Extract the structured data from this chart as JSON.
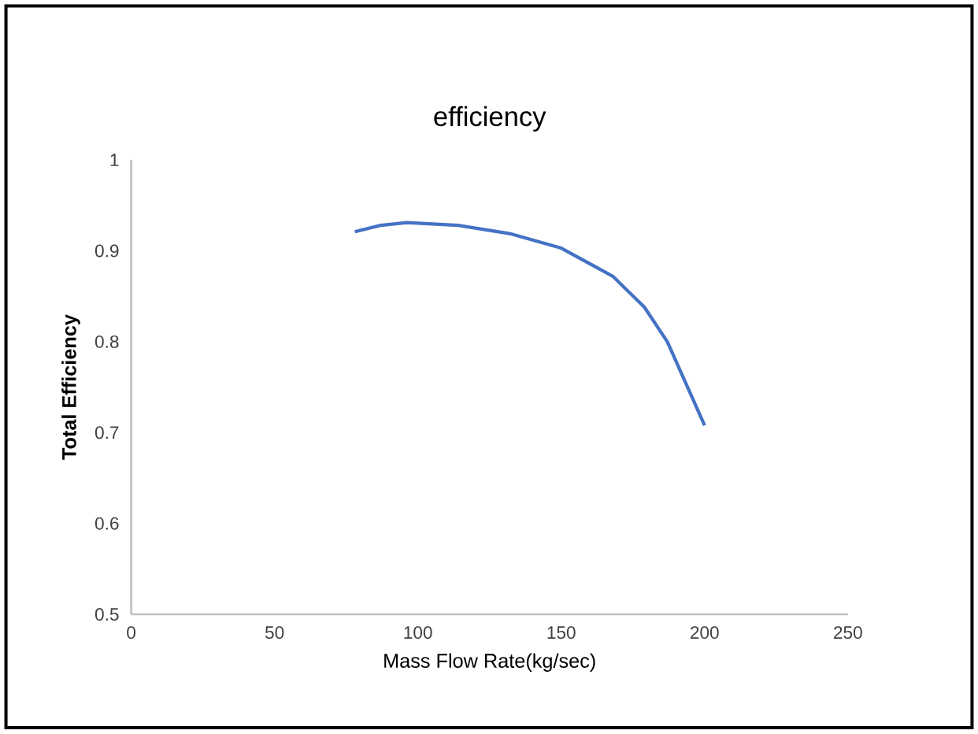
{
  "chart_data": {
    "type": "line",
    "title": "efficiency",
    "xlabel": "Mass Flow Rate(kg/sec)",
    "ylabel": "Total Efficiency",
    "x": [
      78,
      87,
      96,
      114,
      132,
      150,
      168,
      179,
      187,
      200
    ],
    "series": [
      {
        "color": "#4472c4",
        "values": [
          0.921,
          0.928,
          0.931,
          0.928,
          0.919,
          0.903,
          0.872,
          0.838,
          0.8,
          0.708
        ]
      }
    ],
    "xlim": [
      0,
      250
    ],
    "ylim": [
      0.5,
      1
    ],
    "xticks": [
      0,
      50,
      100,
      150,
      200,
      250
    ],
    "yticks": [
      0.5,
      0.6,
      0.7,
      0.8,
      0.9,
      1
    ],
    "grid": false,
    "marker": "none",
    "line_style": "solid"
  }
}
